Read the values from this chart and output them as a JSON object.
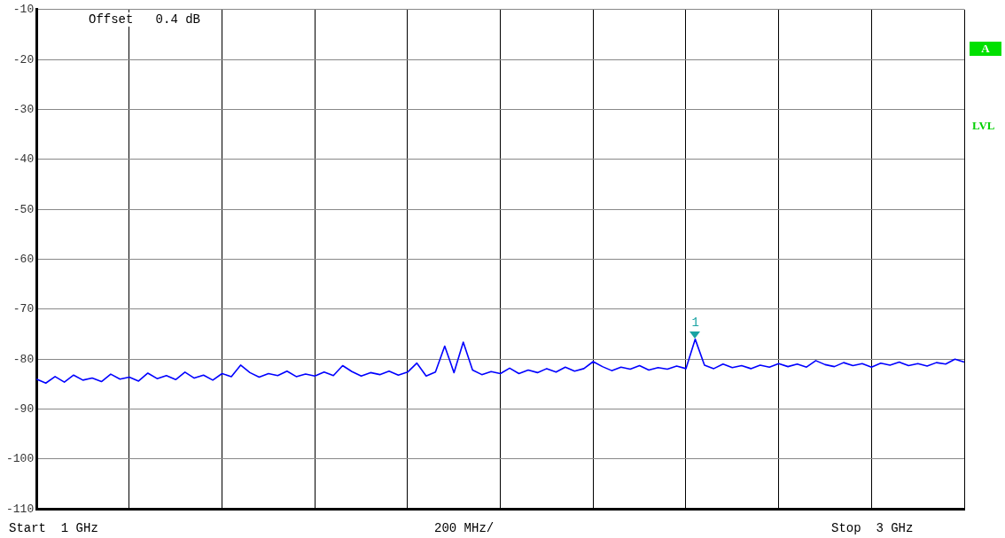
{
  "chart_data": {
    "type": "line",
    "categories": [
      null,
      null,
      null,
      null,
      null,
      null,
      null,
      null,
      null,
      null,
      null,
      null,
      null,
      null,
      null,
      null,
      null,
      null,
      null,
      null,
      null,
      null,
      null,
      null,
      null,
      null,
      null,
      null,
      null,
      null,
      null,
      null,
      null,
      null,
      null,
      null,
      null,
      null,
      null,
      null,
      null,
      null,
      null,
      null,
      null,
      null,
      null,
      null,
      null,
      null,
      null,
      null,
      null,
      null,
      null,
      null,
      null,
      null,
      null,
      null,
      null,
      null,
      null,
      null,
      null,
      null,
      null,
      null,
      null,
      null,
      null,
      null,
      null,
      null,
      null,
      null,
      null,
      null,
      null,
      null,
      null,
      null,
      null,
      null,
      null,
      null,
      null,
      null,
      null,
      null,
      null,
      null,
      null,
      null,
      null,
      null,
      null,
      null,
      null,
      null,
      null
    ],
    "series": [
      {
        "color": "#0000ff",
        "values": [
          -84.0,
          -84.8,
          -83.5,
          -84.6,
          -83.2,
          -84.2,
          -83.8,
          -84.5,
          -83.0,
          -84.0,
          -83.6,
          -84.4,
          -82.8,
          -83.9,
          -83.3,
          -84.1,
          -82.6,
          -83.8,
          -83.2,
          -84.2,
          -82.9,
          -83.5,
          -81.2,
          -82.7,
          -83.6,
          -82.9,
          -83.3,
          -82.4,
          -83.5,
          -83.0,
          -83.4,
          -82.6,
          -83.3,
          -81.3,
          -82.5,
          -83.4,
          -82.7,
          -83.1,
          -82.4,
          -83.2,
          -82.6,
          -80.8,
          -83.4,
          -82.6,
          -77.4,
          -82.7,
          -76.6,
          -82.2,
          -83.1,
          -82.5,
          -82.9,
          -81.8,
          -82.9,
          -82.2,
          -82.7,
          -81.9,
          -82.6,
          -81.6,
          -82.4,
          -81.9,
          -80.5,
          -81.5,
          -82.3,
          -81.6,
          -82.0,
          -81.3,
          -82.2,
          -81.7,
          -82.0,
          -81.4,
          -81.9,
          -76.0,
          -81.2,
          -81.9,
          -81.0,
          -81.7,
          -81.3,
          -81.9,
          -81.2,
          -81.6,
          -80.9,
          -81.5,
          -81.0,
          -81.6,
          -80.3,
          -81.1,
          -81.5,
          -80.7,
          -81.3,
          -80.9,
          -81.6,
          -80.8,
          -81.2,
          -80.6,
          -81.3,
          -80.9,
          -81.4,
          -80.7,
          -81.0,
          -80.0,
          -80.6
        ]
      }
    ],
    "ylim": [
      -110,
      -10
    ],
    "yticks": [
      -10,
      -20,
      -30,
      -40,
      -50,
      -60,
      -70,
      -80,
      -90,
      -100,
      -110
    ],
    "tick_labels": "y",
    "grid": true,
    "legend": false,
    "marker": "none",
    "line_style": "solid",
    "annotations": [
      "Offset   0.4 dB",
      "Start  1 GHz",
      "200 MHz/",
      "Stop  3 GHz",
      "A",
      "LVL",
      "1"
    ]
  }
}
